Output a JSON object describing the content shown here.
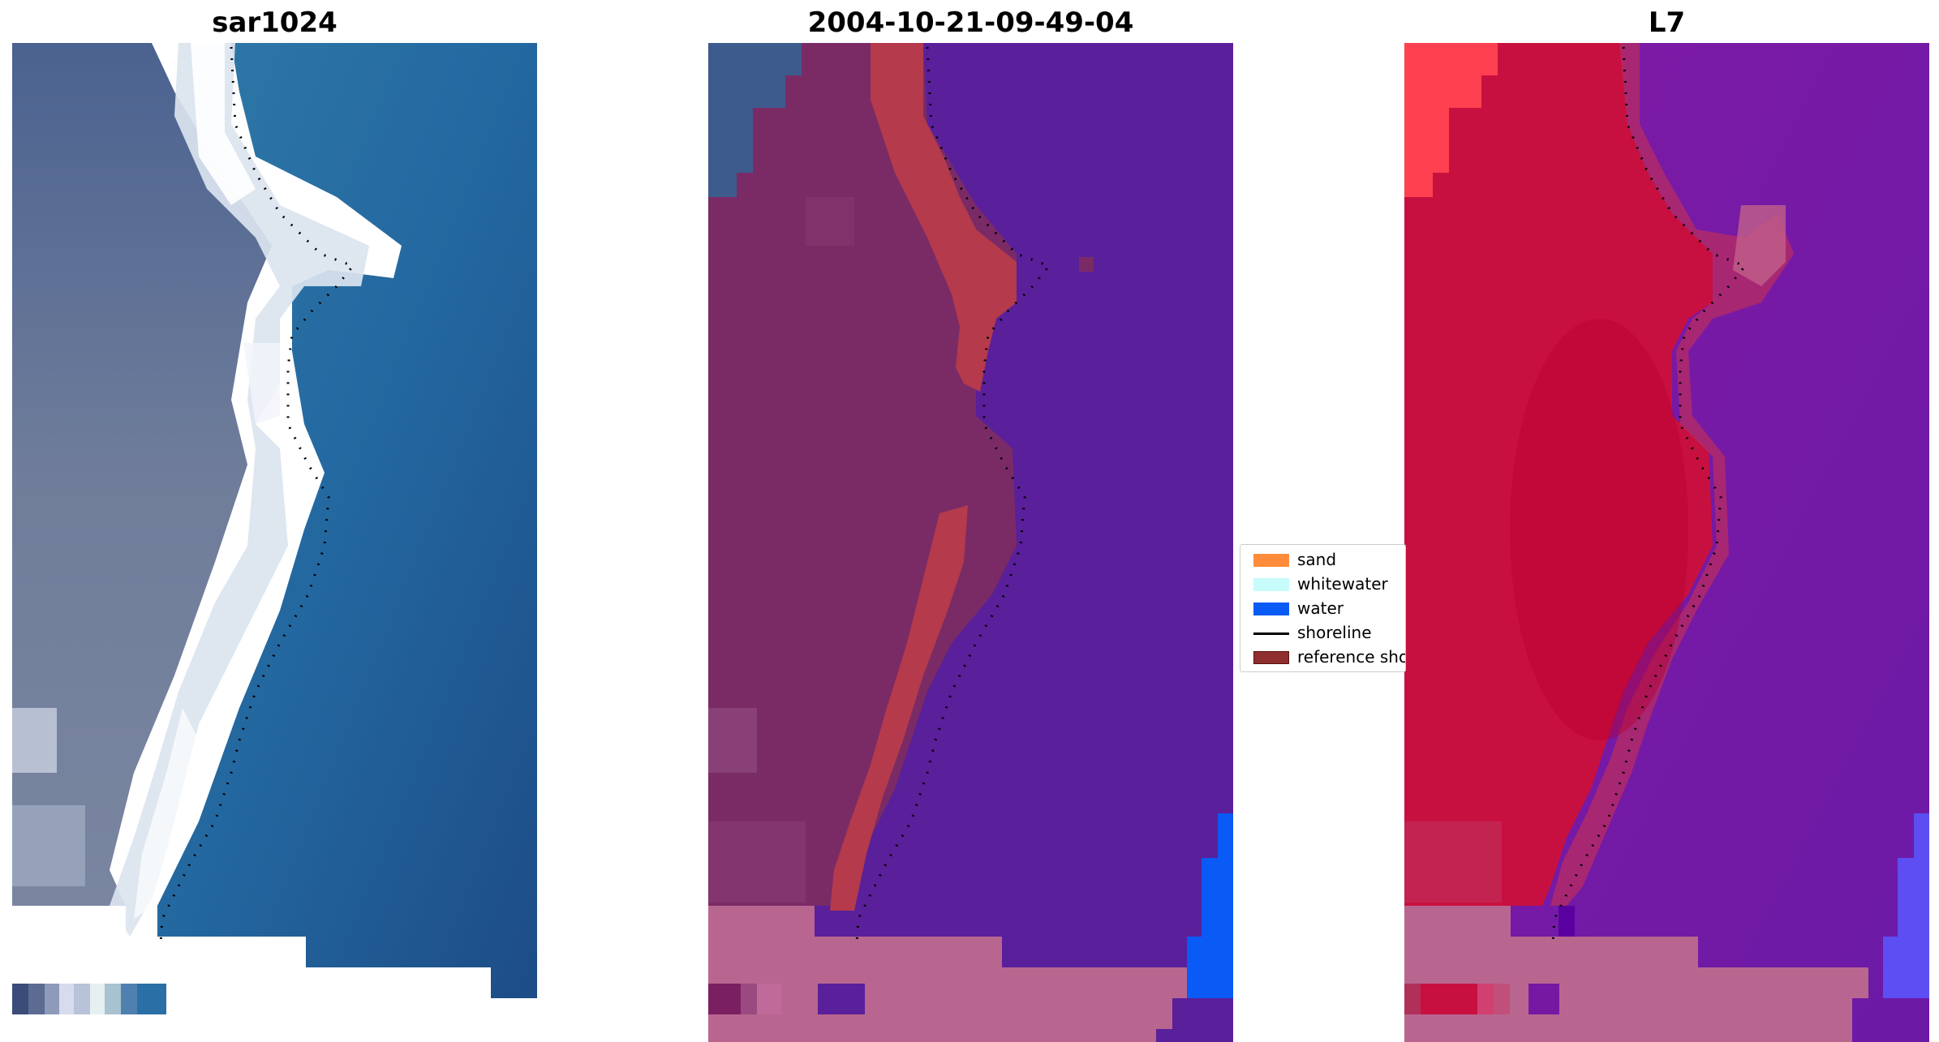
{
  "panels": [
    {
      "title": "sar1024"
    },
    {
      "title": "2004-10-21-09-49-04"
    },
    {
      "title": "L7"
    }
  ],
  "legend": {
    "items": [
      {
        "label": "sand",
        "type": "patch",
        "color": "#ff8c3a"
      },
      {
        "label": "whitewater",
        "type": "patch",
        "color": "#c8fbfb"
      },
      {
        "label": "water",
        "type": "patch",
        "color": "#0a5af5"
      },
      {
        "label": "shoreline",
        "type": "line",
        "color": "#000000"
      },
      {
        "label": "reference shoreline",
        "type": "patch",
        "color": "#8e2e2e"
      }
    ]
  },
  "colors": {
    "rgb_land": "#6a7e9a",
    "rgb_sand": "#e8eef6",
    "rgb_sea": "#2a6fa6",
    "class_land": "#7a2b66",
    "class_sand": "#b53a4c",
    "class_water": "#5a1f9a",
    "class_water_flag": "#0a5af5",
    "nodata_pink": "#b86690",
    "ndwi_land": "#c81040",
    "ndwi_water": "#7718a3",
    "ndwi_water_flag": "#5c4ef2"
  }
}
